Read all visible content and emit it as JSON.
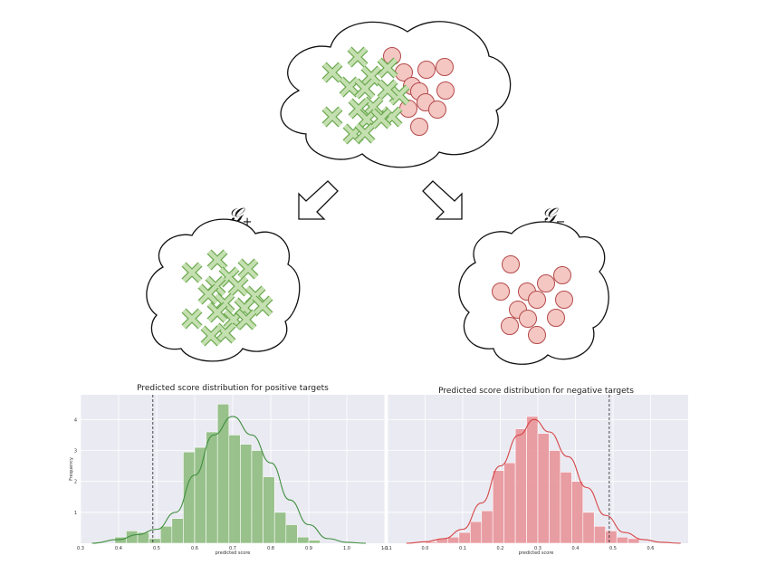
{
  "groups": {
    "positive": {
      "symbol": "𝒢",
      "subscript": "+"
    },
    "negative": {
      "symbol": "𝒢",
      "subscript": "−"
    }
  },
  "colors": {
    "positive_fill": "#c5e0b0",
    "positive_stroke": "#6aa84f",
    "negative_fill": "#f4c7c3",
    "negative_stroke": "#b44a4a",
    "pos_bar": "#8fbd7f",
    "neg_bar": "#e8959a",
    "pos_line": "#3f8f3f",
    "neg_line": "#d64545",
    "plot_bg": "#eaeaf2"
  },
  "chart_data": [
    {
      "type": "bar",
      "title": "Predicted score distribution for positive targets",
      "xlabel": "predicted score",
      "ylabel": "Frequency",
      "xlim": [
        0.3,
        1.1
      ],
      "ylim": [
        0,
        4.8
      ],
      "xticks": [
        "0.3",
        "0.4",
        "0.5",
        "0.6",
        "0.7",
        "0.8",
        "0.9",
        "1.0",
        "1.1"
      ],
      "yticks": [
        "1",
        "2",
        "3",
        "4"
      ],
      "threshold": 0.49,
      "grid": true,
      "bin_edges": [
        0.39,
        0.42,
        0.45,
        0.48,
        0.51,
        0.54,
        0.57,
        0.6,
        0.63,
        0.66,
        0.69,
        0.72,
        0.75,
        0.78,
        0.81,
        0.84,
        0.87,
        0.9,
        0.93
      ],
      "values": [
        0.2,
        0.4,
        0.35,
        0.15,
        0.55,
        0.8,
        2.95,
        3.1,
        3.6,
        4.5,
        3.5,
        3.2,
        3.0,
        2.15,
        1.0,
        0.6,
        0.2,
        0.1
      ],
      "kde": [
        [
          0.33,
          0.0
        ],
        [
          0.4,
          0.12
        ],
        [
          0.45,
          0.28
        ],
        [
          0.5,
          0.45
        ],
        [
          0.55,
          1.0
        ],
        [
          0.6,
          2.2
        ],
        [
          0.65,
          3.5
        ],
        [
          0.7,
          4.1
        ],
        [
          0.75,
          3.5
        ],
        [
          0.8,
          2.6
        ],
        [
          0.85,
          1.4
        ],
        [
          0.9,
          0.6
        ],
        [
          0.95,
          0.15
        ],
        [
          1.0,
          0.03
        ],
        [
          1.05,
          0.0
        ]
      ]
    },
    {
      "type": "bar",
      "title": "Predicted score distribution for negative targets",
      "xlabel": "predicted score",
      "ylabel": "",
      "xlim": [
        -0.1,
        0.7
      ],
      "ylim": [
        0,
        4.8
      ],
      "xticks": [
        "-0.1",
        "0.0",
        "0.1",
        "0.2",
        "0.3",
        "0.4",
        "0.5",
        "0.6"
      ],
      "yticks": [],
      "threshold": 0.49,
      "grid": true,
      "bin_edges": [
        0.0,
        0.03,
        0.06,
        0.09,
        0.12,
        0.15,
        0.18,
        0.21,
        0.24,
        0.27,
        0.3,
        0.33,
        0.36,
        0.39,
        0.42,
        0.45,
        0.48,
        0.51,
        0.54,
        0.57
      ],
      "values": [
        0.05,
        0.15,
        0.2,
        0.35,
        0.7,
        1.05,
        2.35,
        2.6,
        3.7,
        4.1,
        3.55,
        3.0,
        2.3,
        2.0,
        1.0,
        0.55,
        0.4,
        0.2,
        0.15
      ],
      "kde": [
        [
          -0.05,
          0.0
        ],
        [
          0.0,
          0.05
        ],
        [
          0.05,
          0.15
        ],
        [
          0.1,
          0.45
        ],
        [
          0.15,
          1.3
        ],
        [
          0.2,
          2.5
        ],
        [
          0.25,
          3.5
        ],
        [
          0.29,
          4.0
        ],
        [
          0.33,
          3.6
        ],
        [
          0.38,
          2.8
        ],
        [
          0.43,
          1.8
        ],
        [
          0.48,
          0.9
        ],
        [
          0.53,
          0.35
        ],
        [
          0.58,
          0.12
        ],
        [
          0.63,
          0.03
        ],
        [
          0.68,
          0.0
        ]
      ]
    }
  ]
}
